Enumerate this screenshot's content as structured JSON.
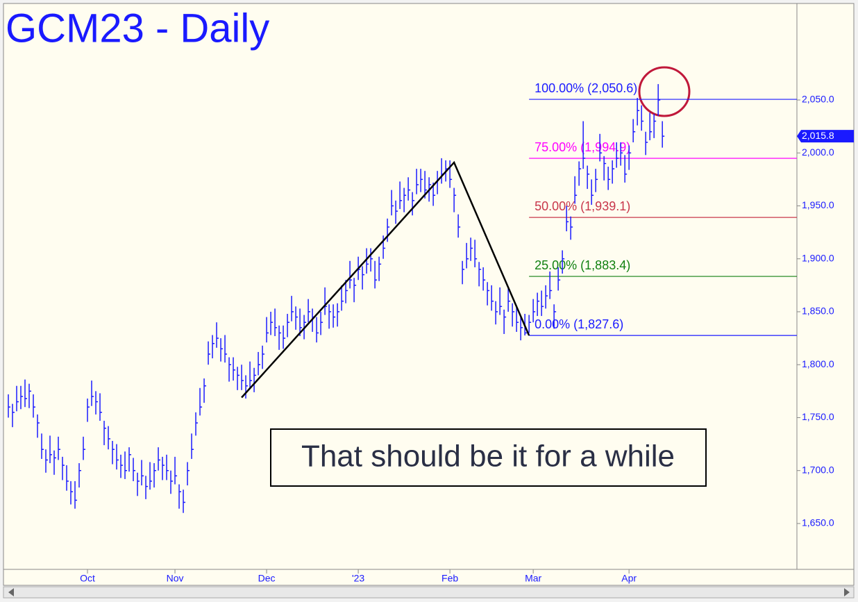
{
  "chart_data": {
    "type": "ohlc",
    "title": "GCM23 - Daily",
    "annotation": "That should be it for a while",
    "color": "#1a1aff",
    "swing_color": "#000000",
    "grid": false,
    "xlim": [
      -1,
      189.3
    ],
    "ylim": [
      1608,
      2140.5
    ],
    "xticks": [
      {
        "value": 19,
        "label": "Oct"
      },
      {
        "value": 40,
        "label": "Nov"
      },
      {
        "value": 62,
        "label": "Dec"
      },
      {
        "value": 84,
        "label": "'23"
      },
      {
        "value": 106,
        "label": "Feb"
      },
      {
        "value": 126,
        "label": "Mar"
      },
      {
        "value": 149,
        "label": "Apr"
      }
    ],
    "yticks": [
      {
        "value": 1650,
        "label": "1,650.0"
      },
      {
        "value": 1700,
        "label": "1,700.0"
      },
      {
        "value": 1750,
        "label": "1,750.0"
      },
      {
        "value": 1800,
        "label": "1,800.0"
      },
      {
        "value": 1850,
        "label": "1,850.0"
      },
      {
        "value": 1900,
        "label": "1,900.0"
      },
      {
        "value": 1950,
        "label": "1,950.0"
      },
      {
        "value": 2000,
        "label": "2,000.0"
      },
      {
        "value": 2050,
        "label": "2,050.0"
      }
    ],
    "last_price": {
      "value": 2015.8,
      "label": "2,015.8"
    },
    "fib_start": 125,
    "fib_levels": [
      {
        "label": "100.00% (2,050.6)",
        "value": 2050.6,
        "color": "#1a1aff"
      },
      {
        "label": "75.00% (1,994.9)",
        "value": 1994.9,
        "color": "#ff00ff"
      },
      {
        "label": "50.00% (1,939.1)",
        "value": 1939.1,
        "color": "#c8364a"
      },
      {
        "label": "25.00% (1,883.4)",
        "value": 1883.4,
        "color": "#108010"
      },
      {
        "label": "0.00% (1,827.6)",
        "value": 1827.6,
        "color": "#1a1aff"
      }
    ],
    "swing": {
      "x": [
        56,
        107,
        125
      ],
      "y": [
        1769,
        1991,
        1827.6
      ]
    },
    "bars": [
      [
        1772,
        1750,
        1760
      ],
      [
        1763,
        1741,
        1755
      ],
      [
        1780,
        1756,
        1765
      ],
      [
        1780,
        1758,
        1770
      ],
      [
        1786,
        1760,
        1768
      ],
      [
        1782,
        1759,
        1775
      ],
      [
        1772,
        1750,
        1760
      ],
      [
        1753,
        1731,
        1745
      ],
      [
        1735,
        1711,
        1720
      ],
      [
        1720,
        1698,
        1710
      ],
      [
        1733,
        1707,
        1715
      ],
      [
        1719,
        1696,
        1712
      ],
      [
        1732,
        1710,
        1720
      ],
      [
        1713,
        1691,
        1705
      ],
      [
        1705,
        1681,
        1690
      ],
      [
        1690,
        1668,
        1680
      ],
      [
        1690,
        1664,
        1672
      ],
      [
        1707,
        1684,
        1700
      ],
      [
        1732,
        1710,
        1720
      ],
      [
        1768,
        1746,
        1760
      ],
      [
        1785,
        1761,
        1770
      ],
      [
        1775,
        1753,
        1765
      ],
      [
        1773,
        1747,
        1755
      ],
      [
        1747,
        1724,
        1740
      ],
      [
        1742,
        1720,
        1730
      ],
      [
        1728,
        1706,
        1720
      ],
      [
        1725,
        1701,
        1710
      ],
      [
        1715,
        1693,
        1705
      ],
      [
        1718,
        1692,
        1700
      ],
      [
        1722,
        1699,
        1715
      ],
      [
        1712,
        1690,
        1700
      ],
      [
        1698,
        1676,
        1690
      ],
      [
        1710,
        1686,
        1695
      ],
      [
        1695,
        1673,
        1685
      ],
      [
        1708,
        1682,
        1690
      ],
      [
        1707,
        1684,
        1700
      ],
      [
        1722,
        1700,
        1710
      ],
      [
        1713,
        1691,
        1705
      ],
      [
        1715,
        1691,
        1700
      ],
      [
        1700,
        1678,
        1690
      ],
      [
        1713,
        1687,
        1695
      ],
      [
        1687,
        1664,
        1680
      ],
      [
        1682,
        1660,
        1670
      ],
      [
        1708,
        1686,
        1700
      ],
      [
        1735,
        1711,
        1720
      ],
      [
        1755,
        1733,
        1745
      ],
      [
        1778,
        1752,
        1760
      ],
      [
        1787,
        1764,
        1780
      ],
      [
        1822,
        1800,
        1810
      ],
      [
        1828,
        1806,
        1820
      ],
      [
        1840,
        1816,
        1825
      ],
      [
        1825,
        1803,
        1815
      ],
      [
        1828,
        1802,
        1810
      ],
      [
        1807,
        1784,
        1800
      ],
      [
        1807,
        1785,
        1795
      ],
      [
        1798,
        1776,
        1790
      ],
      [
        1800,
        1776,
        1785
      ],
      [
        1790,
        1768,
        1780
      ],
      [
        1803,
        1777,
        1785
      ],
      [
        1797,
        1774,
        1790
      ],
      [
        1812,
        1790,
        1800
      ],
      [
        1818,
        1796,
        1810
      ],
      [
        1845,
        1821,
        1830
      ],
      [
        1850,
        1828,
        1840
      ],
      [
        1853,
        1827,
        1835
      ],
      [
        1837,
        1814,
        1830
      ],
      [
        1837,
        1815,
        1825
      ],
      [
        1848,
        1826,
        1840
      ],
      [
        1865,
        1841,
        1850
      ],
      [
        1855,
        1833,
        1845
      ],
      [
        1853,
        1827,
        1835
      ],
      [
        1847,
        1824,
        1840
      ],
      [
        1862,
        1840,
        1850
      ],
      [
        1853,
        1831,
        1845
      ],
      [
        1845,
        1821,
        1830
      ],
      [
        1850,
        1828,
        1840
      ],
      [
        1873,
        1847,
        1855
      ],
      [
        1857,
        1834,
        1850
      ],
      [
        1857,
        1835,
        1845
      ],
      [
        1858,
        1836,
        1850
      ],
      [
        1875,
        1851,
        1860
      ],
      [
        1880,
        1858,
        1870
      ],
      [
        1898,
        1872,
        1880
      ],
      [
        1882,
        1859,
        1875
      ],
      [
        1902,
        1880,
        1890
      ],
      [
        1893,
        1871,
        1885
      ],
      [
        1910,
        1886,
        1895
      ],
      [
        1910,
        1888,
        1900
      ],
      [
        1898,
        1872,
        1880
      ],
      [
        1902,
        1879,
        1895
      ],
      [
        1922,
        1900,
        1910
      ],
      [
        1938,
        1916,
        1930
      ],
      [
        1965,
        1941,
        1950
      ],
      [
        1955,
        1933,
        1945
      ],
      [
        1973,
        1947,
        1955
      ],
      [
        1967,
        1944,
        1960
      ],
      [
        1977,
        1955,
        1965
      ],
      [
        1963,
        1941,
        1955
      ],
      [
        1985,
        1961,
        1970
      ],
      [
        1985,
        1963,
        1975
      ],
      [
        1983,
        1957,
        1965
      ],
      [
        1977,
        1954,
        1970
      ],
      [
        1972,
        1950,
        1960
      ],
      [
        1983,
        1961,
        1975
      ],
      [
        1995,
        1971,
        1980
      ],
      [
        1993,
        1973,
        1985
      ],
      [
        1993,
        1967,
        1975
      ],
      [
        1967,
        1944,
        1960
      ],
      [
        1942,
        1920,
        1930
      ],
      [
        1898,
        1876,
        1890
      ],
      [
        1915,
        1891,
        1900
      ],
      [
        1920,
        1898,
        1910
      ],
      [
        1918,
        1892,
        1900
      ],
      [
        1897,
        1874,
        1890
      ],
      [
        1892,
        1870,
        1880
      ],
      [
        1878,
        1856,
        1870
      ],
      [
        1875,
        1851,
        1860
      ],
      [
        1860,
        1838,
        1850
      ],
      [
        1873,
        1847,
        1855
      ],
      [
        1852,
        1829,
        1845
      ],
      [
        1872,
        1850,
        1860
      ],
      [
        1858,
        1836,
        1850
      ],
      [
        1855,
        1831,
        1840
      ],
      [
        1845,
        1823,
        1835
      ],
      [
        1848,
        1827.6,
        1830
      ],
      [
        1847,
        1830,
        1840
      ],
      [
        1862,
        1840,
        1850
      ],
      [
        1868,
        1846,
        1860
      ],
      [
        1870,
        1846,
        1855
      ],
      [
        1875,
        1853,
        1865
      ],
      [
        1888,
        1862,
        1870
      ],
      [
        1857,
        1834,
        1850
      ],
      [
        1892,
        1870,
        1880
      ],
      [
        1908,
        1886,
        1900
      ],
      [
        1950,
        1926,
        1935
      ],
      [
        1940,
        1918,
        1930
      ],
      [
        1978,
        1952,
        1960
      ],
      [
        1992,
        1969,
        1985
      ],
      [
        2030,
        1985,
        1995
      ],
      [
        1988,
        1966,
        1980
      ],
      [
        1975,
        1951,
        1960
      ],
      [
        1985,
        1963,
        1975
      ],
      [
        2018,
        1992,
        2000
      ],
      [
        1997,
        1974,
        1990
      ],
      [
        1987,
        1965,
        1975
      ],
      [
        1993,
        1971,
        1985
      ],
      [
        2010,
        1986,
        1995
      ],
      [
        2010,
        1988,
        2000
      ],
      [
        1998,
        1972,
        1980
      ],
      [
        2007,
        1984,
        2000
      ],
      [
        2032,
        2010,
        2020
      ],
      [
        2052,
        2026,
        2040
      ],
      [
        2045,
        2021,
        2030
      ],
      [
        2020,
        1998,
        2010
      ],
      [
        2038,
        2012,
        2020
      ],
      [
        2037,
        2014,
        2030
      ],
      [
        2065,
        2035,
        2050
      ],
      [
        2030,
        2005,
        2015.8
      ]
    ]
  }
}
